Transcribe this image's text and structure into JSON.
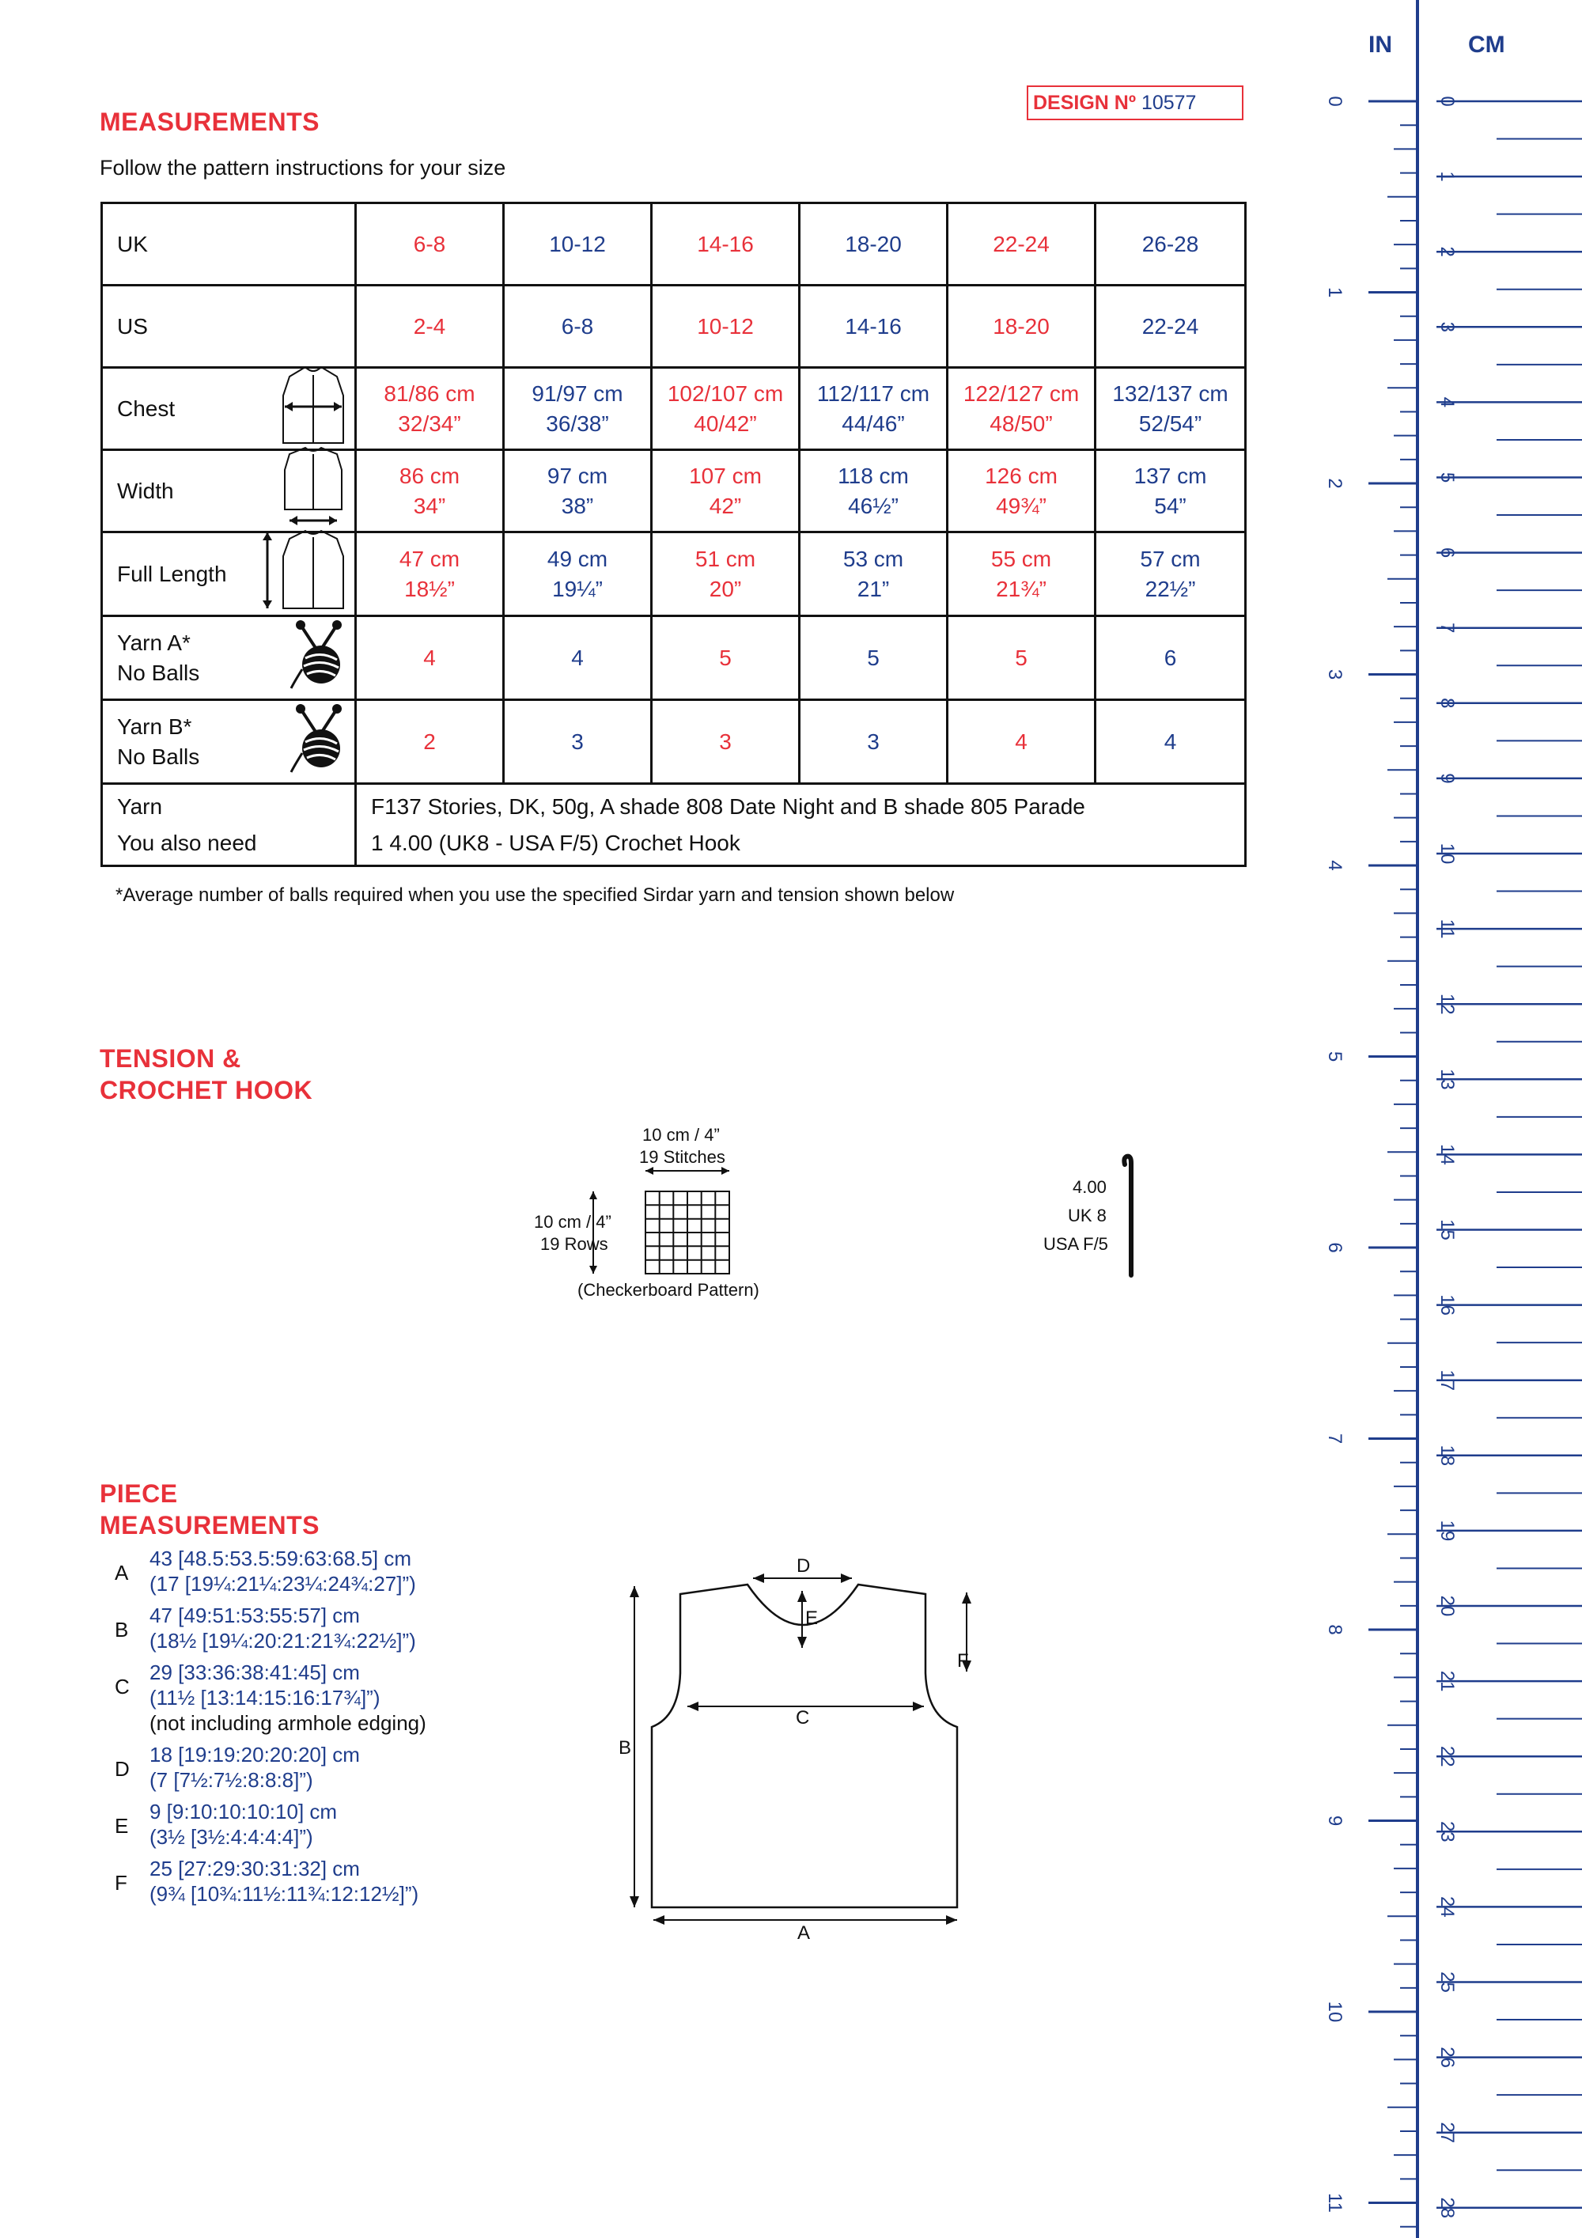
{
  "measurements": {
    "heading": "MEASUREMENTS",
    "design_label": "DESIGN Nº",
    "design_number": "10577",
    "intro": "Follow the pattern instructions for your size",
    "rows": {
      "uk": {
        "label": "UK",
        "values": [
          "6-8",
          "10-12",
          "14-16",
          "18-20",
          "22-24",
          "26-28"
        ]
      },
      "us": {
        "label": "US",
        "values": [
          "2-4",
          "6-8",
          "10-12",
          "14-16",
          "18-20",
          "22-24"
        ]
      },
      "chest": {
        "label": "Chest",
        "values": [
          [
            "81/86 cm",
            "32/34”"
          ],
          [
            "91/97 cm",
            "36/38”"
          ],
          [
            "102/107 cm",
            "40/42”"
          ],
          [
            "112/117 cm",
            "44/46”"
          ],
          [
            "122/127 cm",
            "48/50”"
          ],
          [
            "132/137 cm",
            "52/54”"
          ]
        ]
      },
      "width": {
        "label": "Width",
        "values": [
          [
            "86 cm",
            "34”"
          ],
          [
            "97 cm",
            "38”"
          ],
          [
            "107 cm",
            "42”"
          ],
          [
            "118 cm",
            "46½”"
          ],
          [
            "126 cm",
            "49¾”"
          ],
          [
            "137 cm",
            "54”"
          ]
        ]
      },
      "length": {
        "label": "Full Length",
        "values": [
          [
            "47 cm",
            "18½”"
          ],
          [
            "49 cm",
            "19¼”"
          ],
          [
            "51 cm",
            "20”"
          ],
          [
            "53 cm",
            "21”"
          ],
          [
            "55 cm",
            "21¾”"
          ],
          [
            "57 cm",
            "22½”"
          ]
        ]
      },
      "yarn_a": {
        "label1": "Yarn A*",
        "label2": "No Balls",
        "values": [
          "4",
          "4",
          "5",
          "5",
          "5",
          "6"
        ]
      },
      "yarn_b": {
        "label1": "Yarn B*",
        "label2": "No Balls",
        "values": [
          "2",
          "3",
          "3",
          "3",
          "4",
          "4"
        ]
      }
    },
    "yarn_label": "Yarn",
    "yarn_value": "F137 Stories, DK, 50g, A shade 808 Date Night and B shade 805 Parade",
    "also_label": "You also need",
    "also_value": "1 4.00 (UK8 - USA F/5) Crochet Hook",
    "footnote": "*Average number of balls required when you use the specified Sirdar yarn and tension shown below"
  },
  "tension": {
    "heading_line1": "TENSION &",
    "heading_line2": "CROCHET HOOK",
    "width_label1": "10 cm / 4”",
    "width_label2": "19 Stitches",
    "height_label1": "10 cm / 4”",
    "height_label2": "19 Rows",
    "pattern_label": "(Checkerboard Pattern)",
    "hook_size": "4.00",
    "hook_uk": "UK 8",
    "hook_usa": "USA F/5"
  },
  "pieces": {
    "heading_line1": "PIECE",
    "heading_line2": "MEASUREMENTS",
    "items": [
      {
        "letter": "A",
        "l1": "43 [48.5:53.5:59:63:68.5] cm",
        "l2": "(17 [19¼:21¼:23¼:24¾:27]”)"
      },
      {
        "letter": "B",
        "l1": "47 [49:51:53:55:57] cm",
        "l2": "(18½ [19¼:20:21:21¾:22½]”)"
      },
      {
        "letter": "C",
        "l1": "29 [33:36:38:41:45] cm",
        "l2": "(11½ [13:14:15:16:17¾]”)",
        "l3": "(not including armhole edging)"
      },
      {
        "letter": "D",
        "l1": "18 [19:19:20:20:20] cm",
        "l2": "(7 [7½:7½:8:8:8]”)"
      },
      {
        "letter": "E",
        "l1": "9 [9:10:10:10:10] cm",
        "l2": "(3½ [3½:4:4:4:4]”)"
      },
      {
        "letter": "F",
        "l1": "25 [27:29:30:31:32] cm",
        "l2": "(9¾ [10¾:11½:11¾:12:12½]”)"
      }
    ],
    "diagram_labels": {
      "a": "A",
      "b": "B",
      "c": "C",
      "d": "D",
      "e": "E",
      "f": "F"
    }
  },
  "ruler": {
    "in_label": "IN",
    "cm_label": "CM",
    "inch_numbers": [
      "0",
      "1",
      "2",
      "3",
      "4",
      "5",
      "6",
      "7",
      "8",
      "9",
      "10",
      "11"
    ],
    "cm_numbers": [
      "0",
      "1",
      "2",
      "3",
      "4",
      "5",
      "6",
      "7",
      "8",
      "9",
      "10",
      "11",
      "12",
      "13",
      "14",
      "15",
      "16",
      "17",
      "18",
      "19",
      "20",
      "21",
      "22",
      "23",
      "24",
      "25",
      "26",
      "27",
      "28"
    ]
  },
  "colors": {
    "red": "#e8313a",
    "blue": "#1f3d8c"
  }
}
